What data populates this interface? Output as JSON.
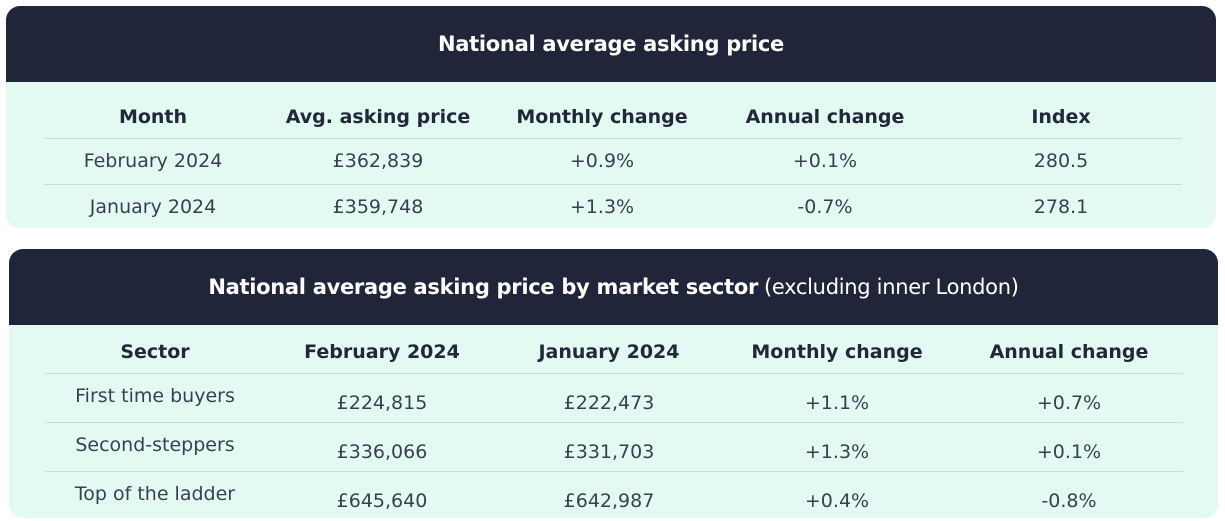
{
  "national": {
    "title": "National average asking price",
    "columns": [
      "Month",
      "Avg. asking price",
      "Monthly change",
      "Annual change",
      "Index"
    ],
    "rows": [
      [
        "February 2024",
        "£362,839",
        "+0.9%",
        "+0.1%",
        "280.5"
      ],
      [
        "January 2024",
        "£359,748",
        "+1.3%",
        "-0.7%",
        "278.1"
      ]
    ]
  },
  "sector": {
    "title": "National average asking price by market sector",
    "subtitle": "(excluding inner London)",
    "columns": [
      "Sector",
      "February 2024",
      "January 2024",
      "Monthly change",
      "Annual change"
    ],
    "rows": [
      [
        "First time buyers",
        "£224,815",
        "£222,473",
        "+1.1%",
        "+0.7%"
      ],
      [
        "Second-steppers",
        "£336,066",
        "£331,703",
        "+1.3%",
        "+0.1%"
      ],
      [
        "Top of the ladder",
        "£645,640",
        "£642,987",
        "+0.4%",
        "-0.8%"
      ]
    ]
  },
  "colors": {
    "header_bg": "#20253a",
    "card_bg": "#e3faf3",
    "divider": "#c6dcd6"
  }
}
